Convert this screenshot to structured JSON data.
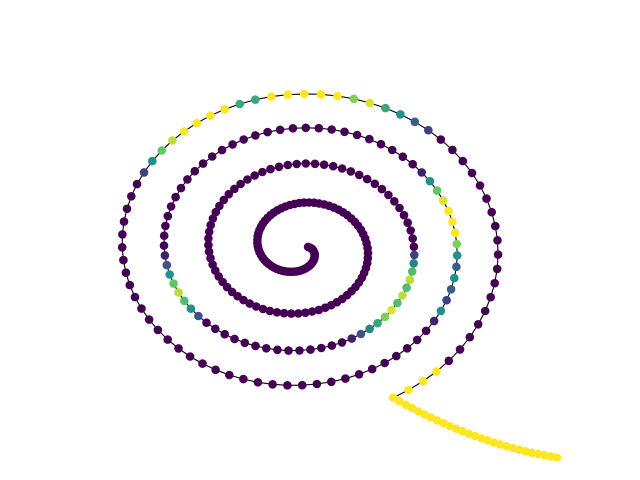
{
  "chart_data": {
    "type": "scatter",
    "kind": "graph",
    "title": "",
    "xlabel": "",
    "ylabel": "",
    "axes_visible": false,
    "colormap": [
      "#440154",
      "#3b528b",
      "#21918c",
      "#5ec962",
      "#fde725"
    ],
    "spiral": {
      "turns": 4.2,
      "inner_radius": 0.0,
      "outer_radius": 1.0,
      "rotation_deg": 0,
      "node_count": 300
    },
    "node_values": [
      0,
      0,
      0,
      0,
      0,
      0,
      0,
      0,
      0,
      0,
      0,
      0,
      0,
      0,
      0,
      0,
      0,
      0,
      0,
      0,
      0,
      0,
      0,
      0,
      0,
      0,
      0,
      0,
      0,
      0,
      0,
      0,
      0,
      0,
      0,
      0,
      0,
      0,
      0,
      0,
      0,
      0,
      0,
      0,
      0,
      0,
      0,
      0,
      0,
      0,
      0,
      0,
      0,
      0,
      0,
      0,
      0,
      0,
      0,
      0,
      0,
      0,
      0,
      0,
      0,
      0,
      0,
      0,
      0,
      0,
      0,
      0,
      0,
      0,
      0,
      0,
      0,
      0,
      0,
      0,
      0,
      0,
      0,
      0,
      0,
      0,
      0,
      0,
      0,
      0,
      0,
      0,
      0,
      0,
      0,
      0,
      0,
      0,
      0,
      0,
      0,
      0,
      0,
      0,
      0,
      0,
      0,
      0,
      0,
      0,
      0,
      0,
      0,
      0,
      0,
      0,
      0,
      0,
      0,
      0,
      0,
      0,
      0,
      0,
      0,
      0,
      0,
      0,
      0,
      0,
      0,
      0,
      0,
      0,
      0,
      0,
      0,
      0,
      0,
      0,
      0,
      0,
      0,
      0,
      0,
      0.2,
      0.45,
      0.7,
      0.9,
      0.7,
      0.9,
      0.7,
      0.95,
      0.8,
      0.6,
      0.45,
      0.25,
      0.1,
      0,
      0,
      0,
      0,
      0,
      0,
      0,
      0,
      0,
      0,
      0,
      0,
      0,
      0,
      0.25,
      0.5,
      0.7,
      0.9,
      0.75,
      0.5,
      0.25,
      0.1,
      0,
      0,
      0,
      0,
      0,
      0,
      0,
      0,
      0,
      0,
      0,
      0,
      0,
      0,
      0,
      0,
      0,
      0,
      0,
      0,
      0,
      0,
      0,
      0,
      0,
      0,
      0,
      0,
      0.1,
      0.5,
      0.75,
      0.95,
      1,
      1,
      1,
      0.8,
      0.5,
      0.3,
      0.5,
      0.3,
      0.2,
      0.5,
      0.1,
      0,
      0,
      0,
      0,
      0,
      0,
      0,
      0,
      0,
      0,
      0,
      0,
      0,
      0,
      0,
      0,
      0,
      0,
      0,
      0,
      0,
      0,
      0,
      0,
      0,
      0,
      0,
      0,
      0,
      0,
      0,
      0,
      0,
      0,
      0.2,
      0.5,
      0.75,
      0.9,
      1,
      1,
      1,
      1,
      0.6,
      0.6,
      1,
      1,
      1,
      1,
      1,
      0.8,
      0.95,
      0.6,
      0.5,
      0.3,
      0.2,
      0,
      0,
      0,
      0,
      0,
      0,
      0,
      0,
      0,
      0,
      0,
      0,
      0,
      0,
      0,
      0,
      0,
      0
    ]
  }
}
